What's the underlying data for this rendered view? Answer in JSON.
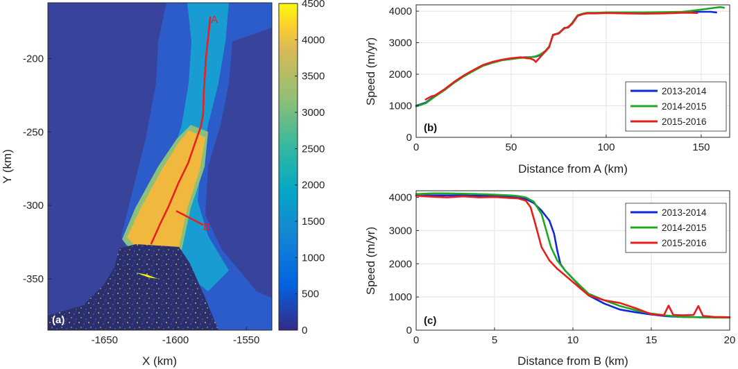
{
  "chart_data": [
    {
      "panel": "(a)",
      "type": "heatmap",
      "xlabel": "X (km)",
      "ylabel": "Y (km)",
      "xlim": [
        -1690,
        -1532
      ],
      "ylim": [
        -385,
        -162
      ],
      "xticks": [
        -1650,
        -1600,
        -1550
      ],
      "yticks": [
        -200,
        -250,
        -300,
        -350
      ],
      "colorbar": {
        "min": 0,
        "max": 4500,
        "ticks": [
          0,
          500,
          1000,
          1500,
          2000,
          2500,
          3000,
          3500,
          4000,
          4500
        ],
        "colormap": "parula"
      },
      "profiles": [
        {
          "name": "A",
          "x": [
            -1575.5,
            -1578.5,
            -1580,
            -1580.5,
            -1582,
            -1586,
            -1591,
            -1598,
            -1605,
            -1611,
            -1617
          ],
          "y": [
            -172,
            -200,
            -222,
            -238,
            -246,
            -257,
            -271,
            -285,
            -301,
            -313,
            -326
          ]
        },
        {
          "name": "B",
          "x": [
            -1599,
            -1581
          ],
          "y": [
            -304,
            -313
          ]
        }
      ],
      "colors": {
        "profile": "#e8201e",
        "ice_low": "#352a87",
        "ice_high": "#f9fb0e"
      }
    },
    {
      "panel": "(b)",
      "type": "line",
      "xlabel": "Distance from A (km)",
      "ylabel": "Speed (m/yr)",
      "xlim": [
        0,
        165
      ],
      "ylim": [
        0,
        4200
      ],
      "xticks": [
        0,
        50,
        100,
        150
      ],
      "yticks": [
        0,
        1000,
        2000,
        3000,
        4000
      ],
      "grid": true,
      "legend_position": "bottom-right",
      "series": [
        {
          "name": "2013-2014",
          "color": "#0d27dd",
          "x": [
            0,
            5,
            10,
            15,
            20,
            25,
            30,
            35,
            40,
            45,
            50,
            55,
            58,
            60,
            62,
            63,
            65,
            68,
            70,
            72,
            75,
            78,
            80,
            82,
            85,
            88,
            90,
            95,
            100,
            110,
            120,
            130,
            140,
            150,
            155,
            158
          ],
          "y": [
            1000,
            1100,
            1320,
            1520,
            1750,
            1950,
            2120,
            2280,
            2380,
            2450,
            2500,
            2530,
            2540,
            2540,
            2550,
            2560,
            2600,
            2720,
            2870,
            3250,
            3300,
            3470,
            3480,
            3600,
            3860,
            3920,
            3940,
            3940,
            3950,
            3950,
            3950,
            3960,
            3970,
            3980,
            3980,
            3960
          ]
        },
        {
          "name": "2014-2015",
          "color": "#1fa81f",
          "x": [
            0,
            5,
            10,
            15,
            20,
            25,
            30,
            35,
            40,
            45,
            50,
            55,
            58,
            60,
            62,
            63,
            65,
            68,
            70,
            72,
            75,
            78,
            80,
            82,
            85,
            88,
            90,
            95,
            100,
            110,
            120,
            130,
            140,
            145,
            150,
            155,
            160,
            162
          ],
          "y": [
            980,
            1080,
            1300,
            1500,
            1730,
            1930,
            2100,
            2260,
            2360,
            2440,
            2480,
            2520,
            2530,
            2540,
            2560,
            2570,
            2620,
            2740,
            2880,
            3230,
            3310,
            3450,
            3500,
            3620,
            3870,
            3930,
            3950,
            3950,
            3960,
            3960,
            3960,
            3970,
            3980,
            4010,
            4050,
            4090,
            4130,
            4110
          ]
        },
        {
          "name": "2015-2016",
          "color": "#e81d1b",
          "x": [
            5,
            8,
            10,
            15,
            20,
            25,
            30,
            35,
            40,
            45,
            50,
            52,
            55,
            58,
            60,
            62,
            63,
            70,
            72,
            75,
            78,
            80,
            82,
            85,
            88,
            90,
            95,
            100,
            110,
            120,
            130,
            140,
            145,
            148
          ],
          "y": [
            1200,
            1300,
            1330,
            1530,
            1760,
            1960,
            2130,
            2290,
            2390,
            2460,
            2510,
            2520,
            2540,
            2510,
            2500,
            2450,
            2390,
            2860,
            3250,
            3290,
            3460,
            3490,
            3590,
            3850,
            3910,
            3930,
            3930,
            3940,
            3930,
            3920,
            3930,
            3950,
            3950,
            3940
          ]
        }
      ]
    },
    {
      "panel": "(c)",
      "type": "line",
      "xlabel": "Distance from B (km)",
      "ylabel": "Speed (m/yr)",
      "xlim": [
        0,
        20
      ],
      "ylim": [
        0,
        4200
      ],
      "xticks": [
        0,
        5,
        10,
        15,
        20
      ],
      "yticks": [
        0,
        1000,
        2000,
        3000,
        4000
      ],
      "grid": true,
      "legend_position": "top-right",
      "series": [
        {
          "name": "2013-2014",
          "color": "#0d27dd",
          "x": [
            0,
            1,
            2,
            3,
            4,
            5,
            6,
            6.5,
            7,
            7.5,
            8,
            8.5,
            8.8,
            9,
            9.2,
            9.5,
            10,
            10.5,
            11,
            12,
            13,
            14,
            15,
            16,
            17,
            18,
            19,
            20
          ],
          "y": [
            4050,
            4060,
            4060,
            4060,
            4050,
            4040,
            4020,
            4000,
            3950,
            3830,
            3600,
            3300,
            2900,
            2400,
            2000,
            1800,
            1550,
            1300,
            1050,
            800,
            620,
            540,
            470,
            420,
            400,
            390,
            380,
            380
          ]
        },
        {
          "name": "2014-2015",
          "color": "#1fa81f",
          "x": [
            0,
            1,
            2,
            3,
            4,
            5,
            6,
            6.5,
            7,
            7.5,
            8,
            8.3,
            8.6,
            9,
            9.5,
            10,
            10.5,
            11,
            12,
            13,
            14,
            15,
            16,
            17,
            18,
            19,
            20
          ],
          "y": [
            4100,
            4120,
            4120,
            4110,
            4100,
            4080,
            4060,
            4040,
            4000,
            3870,
            3500,
            3000,
            2500,
            2100,
            1800,
            1550,
            1320,
            1100,
            900,
            730,
            600,
            500,
            440,
            400,
            390,
            380,
            380
          ]
        },
        {
          "name": "2015-2016",
          "color": "#e81d1b",
          "x": [
            0,
            1,
            2,
            3,
            4,
            5,
            6,
            6.5,
            7,
            7.3,
            7.6,
            8,
            8.5,
            9,
            9.5,
            10,
            10.5,
            11,
            12,
            13,
            14,
            15,
            15.8,
            16.1,
            16.4,
            17,
            17.7,
            18,
            18.3,
            19,
            20
          ],
          "y": [
            4050,
            4020,
            4000,
            4030,
            4000,
            4010,
            3980,
            3970,
            3900,
            3700,
            3200,
            2500,
            2100,
            1850,
            1650,
            1450,
            1250,
            1050,
            900,
            820,
            660,
            480,
            450,
            740,
            460,
            450,
            460,
            730,
            430,
            400,
            390
          ]
        }
      ]
    }
  ]
}
